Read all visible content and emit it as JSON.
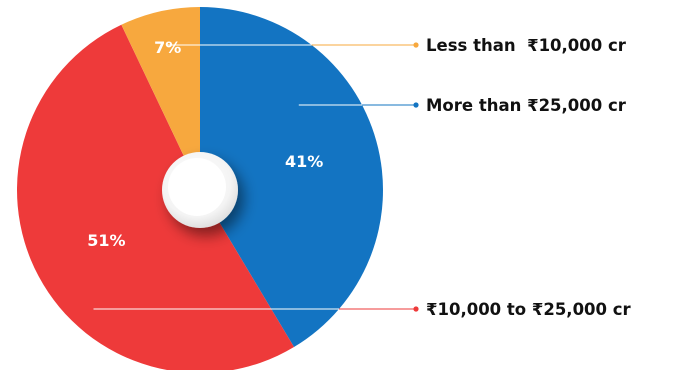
{
  "chart_data": {
    "type": "pie",
    "slices": [
      {
        "label": "More than ₹25,000 cr",
        "value": 41,
        "value_label": "41%",
        "color": "#1374C2"
      },
      {
        "label": "₹10,000 to ₹25,000 cr",
        "value": 51,
        "value_label": "51%",
        "color": "#EE3A3A"
      },
      {
        "label": "Less than  ₹10,000 cr",
        "value": 7,
        "value_label": "7%",
        "color": "#F7A83E"
      }
    ],
    "donut_hole": true,
    "legend_position": "right"
  }
}
